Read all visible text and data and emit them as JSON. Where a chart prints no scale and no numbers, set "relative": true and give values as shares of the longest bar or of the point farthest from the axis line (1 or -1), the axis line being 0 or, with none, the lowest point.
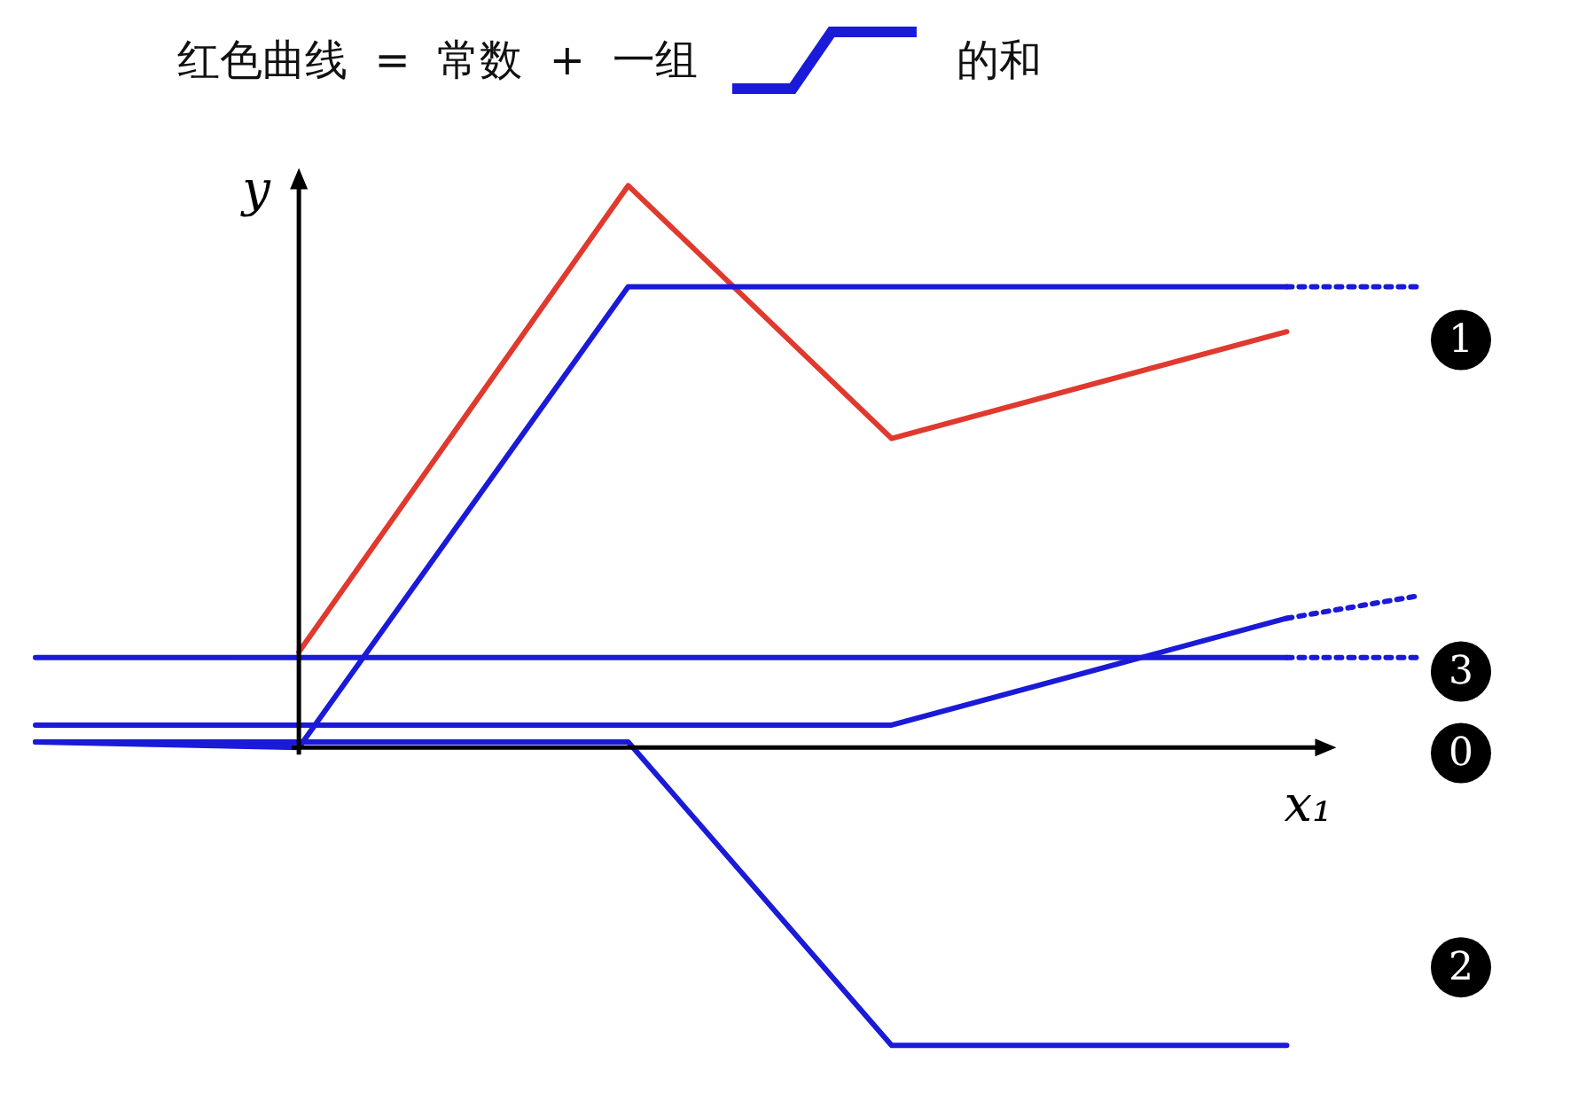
{
  "chart_data": {
    "type": "line",
    "title": "红色曲线  =  常数  +  一组",
    "annotations": [
      "的和"
    ],
    "xlabel": "x₁",
    "ylabel": "y",
    "relative": true,
    "legend": false,
    "marker": "none",
    "categories": [
      null,
      null,
      null,
      null,
      null,
      null,
      null,
      null,
      null,
      null,
      null,
      null,
      null,
      null,
      null,
      null,
      null,
      null,
      null,
      null,
      null,
      null
    ],
    "series": [
      {
        "name": "0",
        "color": "#1a1ad8",
        "line_style": "solid",
        "values": [
          0.16,
          null,
          null,
          null,
          null,
          null,
          null,
          null,
          null,
          null,
          null,
          null,
          null,
          null,
          null,
          null,
          null,
          null,
          null,
          0.16,
          null,
          null
        ]
      },
      {
        "color": "#1a1ad8",
        "line_style": "dotted",
        "values": [
          null,
          null,
          null,
          null,
          null,
          null,
          null,
          null,
          null,
          null,
          null,
          null,
          null,
          null,
          null,
          null,
          null,
          null,
          null,
          0.16,
          null,
          0.16
        ]
      },
      {
        "name": "1",
        "color": "#1a1ad8",
        "line_style": "solid",
        "values": [
          0.01,
          null,
          null,
          null,
          0,
          null,
          null,
          null,
          null,
          0.82,
          null,
          null,
          null,
          null,
          null,
          null,
          null,
          null,
          null,
          0.82,
          null,
          null
        ]
      },
      {
        "color": "#1a1ad8",
        "line_style": "dotted",
        "values": [
          null,
          null,
          null,
          null,
          null,
          null,
          null,
          null,
          null,
          null,
          null,
          null,
          null,
          null,
          null,
          null,
          null,
          null,
          null,
          0.82,
          null,
          0.82
        ]
      },
      {
        "name": "3",
        "color": "#1a1ad8",
        "line_style": "solid",
        "values": [
          0.04,
          null,
          null,
          null,
          null,
          null,
          null,
          null,
          null,
          null,
          null,
          null,
          null,
          0.04,
          null,
          null,
          null,
          null,
          null,
          0.23,
          null,
          null
        ]
      },
      {
        "color": "#1a1ad8",
        "line_style": "dotted",
        "values": [
          null,
          null,
          null,
          null,
          null,
          null,
          null,
          null,
          null,
          null,
          null,
          null,
          null,
          null,
          null,
          null,
          null,
          null,
          null,
          0.23,
          null,
          0.27
        ]
      },
      {
        "name": "2",
        "color": "#1a1ad8",
        "line_style": "solid",
        "values": [
          0.01,
          null,
          null,
          null,
          null,
          null,
          null,
          null,
          null,
          0.01,
          null,
          null,
          null,
          -0.53,
          null,
          null,
          null,
          null,
          null,
          -0.53,
          null,
          null
        ]
      },
      {
        "color": "#e0392e",
        "line_style": "solid",
        "values": [
          null,
          null,
          null,
          null,
          0.17,
          null,
          null,
          null,
          null,
          1,
          null,
          null,
          null,
          0.55,
          null,
          null,
          null,
          null,
          null,
          0.74,
          null,
          null
        ]
      }
    ]
  }
}
